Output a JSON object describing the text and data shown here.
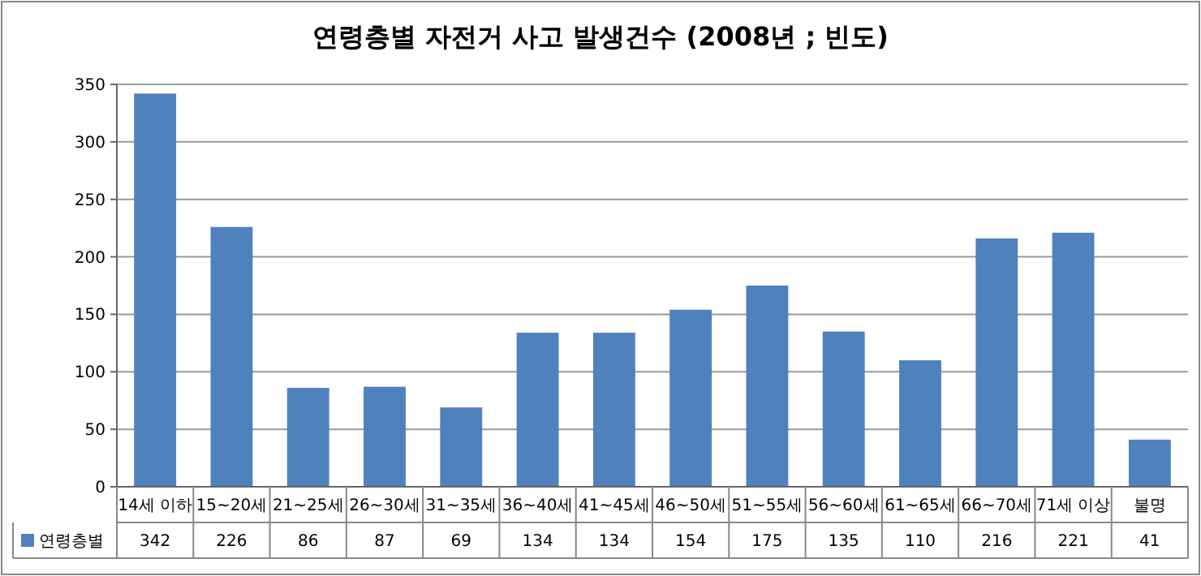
{
  "chart_data": {
    "type": "bar",
    "title": "연령층별 자전거 사고 발생건수 (2008년 ; 빈도)",
    "categories": [
      "14세 이하",
      "15~20세",
      "21~25세",
      "26~30세",
      "31~35세",
      "36~40세",
      "41~45세",
      "46~50세",
      "51~55세",
      "56~60세",
      "61~65세",
      "66~70세",
      "71세 이상",
      "불명"
    ],
    "series": [
      {
        "name": "연령층별",
        "color": "#4f81bd",
        "values": [
          342,
          226,
          86,
          87,
          69,
          134,
          134,
          154,
          175,
          135,
          110,
          216,
          221,
          41
        ]
      }
    ],
    "ylim": [
      0,
      350
    ],
    "yticks": [
      0,
      50,
      100,
      150,
      200,
      250,
      300,
      350
    ],
    "grid": "y",
    "legend": "bottom left",
    "data_labels": true
  }
}
